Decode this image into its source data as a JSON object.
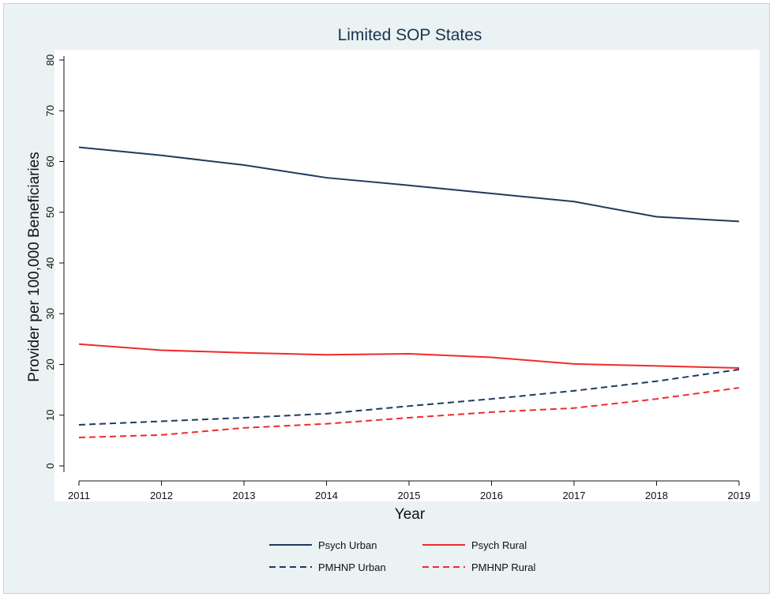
{
  "chart_data": {
    "type": "line",
    "title": "Limited SOP States",
    "xlabel": "Year",
    "ylabel": "Provider per 100,000 Beneficiaries",
    "x": [
      2011,
      2012,
      2013,
      2014,
      2015,
      2016,
      2017,
      2018,
      2019
    ],
    "ylim": [
      0,
      80
    ],
    "yticks": [
      0,
      10,
      20,
      30,
      40,
      50,
      60,
      70,
      80
    ],
    "grid": false,
    "legend_position": "bottom",
    "series": [
      {
        "name": "Psych Urban",
        "color": "#1f3b5a",
        "dash": "solid",
        "values": [
          62.8,
          61.2,
          59.3,
          56.8,
          55.3,
          53.7,
          52.1,
          49.1,
          48.2
        ]
      },
      {
        "name": "Psych Rural",
        "color": "#ef2b2b",
        "dash": "solid",
        "values": [
          24.0,
          22.8,
          22.3,
          21.9,
          22.1,
          21.4,
          20.1,
          19.7,
          19.3
        ]
      },
      {
        "name": "PMHNP Urban",
        "color": "#1f3b5a",
        "dash": "dashed",
        "values": [
          8.1,
          8.8,
          9.5,
          10.3,
          11.8,
          13.2,
          14.8,
          16.7,
          19.0
        ]
      },
      {
        "name": "PMHNP Rural",
        "color": "#ef2b2b",
        "dash": "dashed",
        "values": [
          5.6,
          6.1,
          7.5,
          8.3,
          9.5,
          10.6,
          11.4,
          13.2,
          15.4
        ]
      }
    ]
  }
}
